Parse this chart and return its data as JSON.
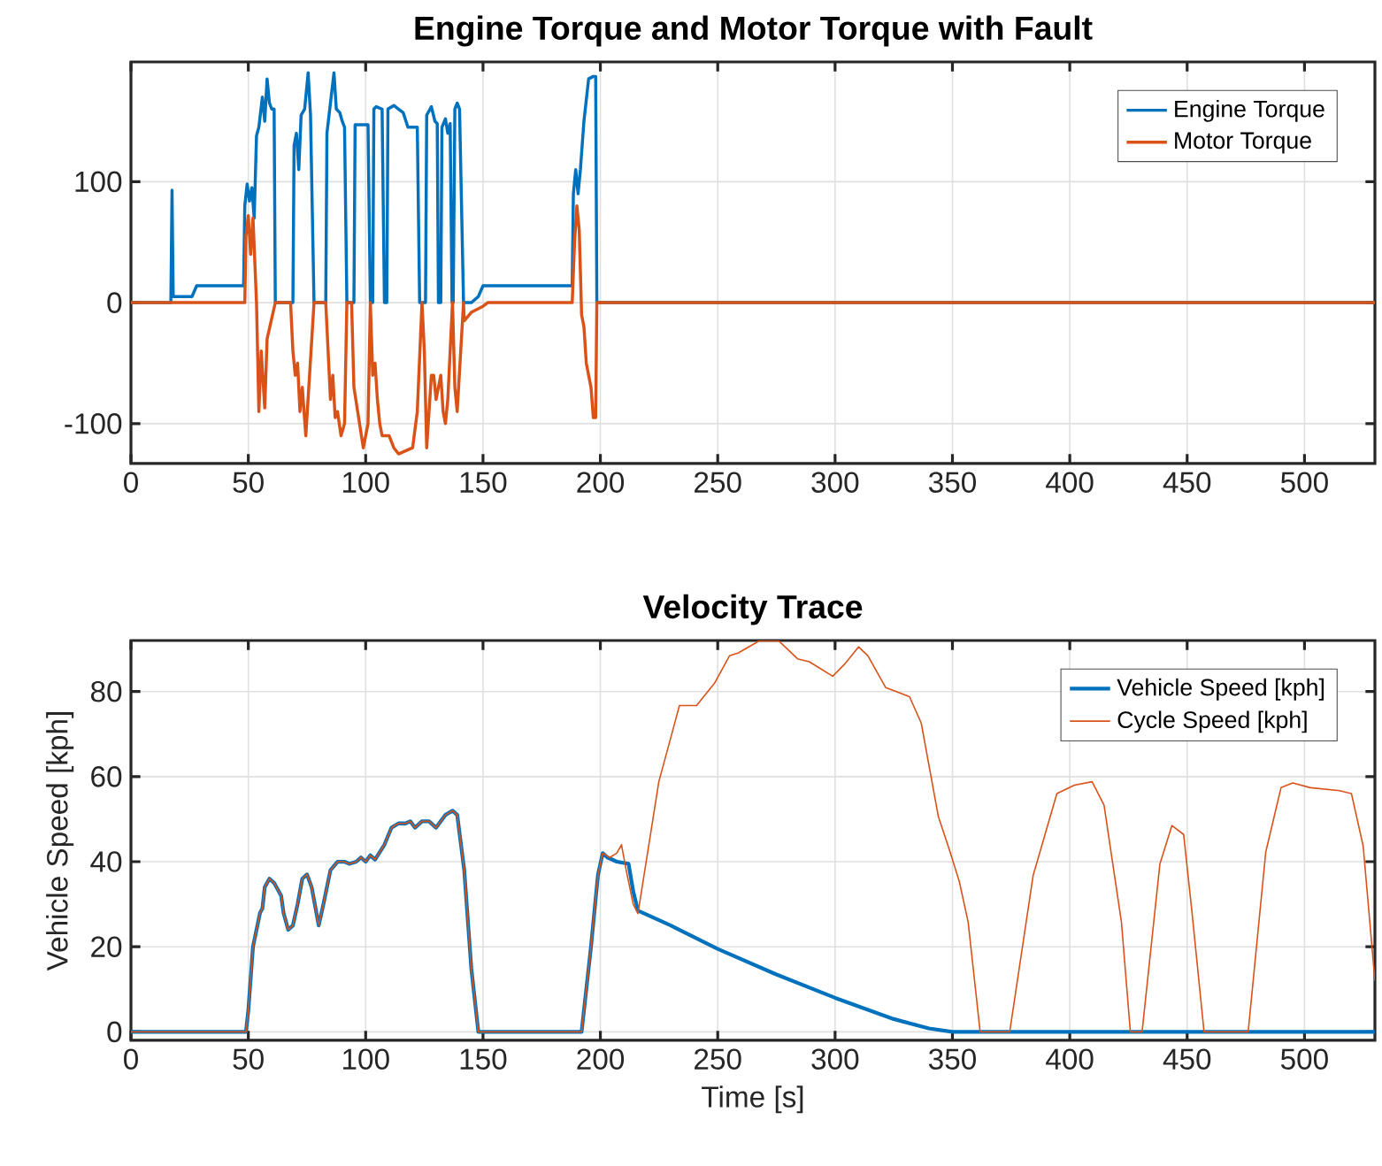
{
  "chart_data": [
    {
      "type": "line",
      "title": "Engine Torque and Motor Torque with Fault",
      "xlim": [
        0,
        530
      ],
      "xticks": [
        0,
        50,
        100,
        150,
        200,
        250,
        300,
        350,
        400,
        450,
        500
      ],
      "ylim": [
        -133,
        199
      ],
      "yticks": [
        -100,
        0,
        100
      ],
      "grid": true,
      "legend": "top right",
      "series": [
        {
          "name": "Engine Torque",
          "color": "#0072bd",
          "x": [
            0,
            17,
            17.5,
            18,
            26,
            28,
            48,
            48.5,
            49.5,
            50.5,
            51.5,
            52.5,
            53.5,
            54.5,
            56,
            57,
            58,
            59,
            60,
            61,
            61.5,
            69,
            69.5,
            70.5,
            71.5,
            72.5,
            74,
            75,
            75.5,
            76.5,
            78,
            83,
            83.5,
            85,
            86.5,
            87.5,
            89,
            90,
            91,
            92,
            95,
            95.5,
            101,
            102,
            103,
            103.5,
            104.5,
            107,
            108,
            109,
            109.5,
            112,
            114,
            116,
            118,
            122,
            123,
            125.5,
            126,
            128,
            129.5,
            130.5,
            131,
            132,
            132.5,
            134,
            135,
            136,
            136.8,
            137.3,
            138,
            139,
            140,
            141.7,
            145,
            148,
            150,
            188,
            188.5,
            189.5,
            190.5,
            191.5,
            193,
            195,
            196,
            197,
            198,
            198.5,
            530
          ],
          "values": [
            0,
            0,
            93,
            5,
            5,
            14,
            14,
            80,
            98,
            84,
            95,
            70,
            138,
            145,
            170,
            150,
            185,
            165,
            160,
            160,
            0,
            0,
            130,
            140,
            110,
            155,
            160,
            180,
            190,
            155,
            0,
            0,
            140,
            165,
            190,
            160,
            157,
            150,
            145,
            0,
            0,
            147,
            147,
            0,
            0,
            160,
            162,
            160,
            0,
            0,
            160,
            163,
            160,
            157,
            145,
            145,
            0,
            0,
            155,
            162,
            150,
            148,
            0,
            0,
            145,
            152,
            140,
            148,
            0,
            0,
            160,
            165,
            160,
            0,
            0,
            5,
            14,
            14,
            90,
            110,
            90,
            110,
            150,
            185,
            null,
            187,
            187,
            0,
            0
          ]
        },
        {
          "name": "Motor Torque",
          "color": "#d95319",
          "x": [
            0,
            48.5,
            49,
            50,
            51,
            52,
            53.5,
            54.5,
            55.5,
            57,
            58,
            59,
            60.5,
            61.5,
            68,
            69,
            70,
            71,
            72,
            73,
            74.5,
            75.5,
            76.5,
            78,
            83,
            84,
            85,
            86,
            87,
            88,
            89.5,
            91,
            92,
            94,
            95,
            96,
            98,
            99,
            100,
            101,
            102,
            103,
            104,
            105,
            106,
            107,
            108,
            109,
            110,
            112,
            114,
            116,
            118,
            120,
            122,
            123,
            124,
            125,
            126,
            127,
            128,
            129,
            130,
            131,
            132,
            133,
            134,
            135,
            136,
            137,
            138,
            139,
            140,
            141,
            141.7,
            142,
            145,
            150,
            152,
            188,
            189,
            190,
            191,
            192,
            193,
            194,
            195,
            196,
            197,
            198,
            198.5,
            530
          ],
          "values": [
            0,
            0,
            55,
            72,
            40,
            70,
            0,
            -90,
            -40,
            -87,
            -30,
            null,
            null,
            0,
            0,
            -40,
            -60,
            -50,
            -90,
            -70,
            -110,
            null,
            null,
            0,
            0,
            -40,
            -80,
            -60,
            -95,
            -90,
            -110,
            -100,
            0,
            0,
            -70,
            null,
            null,
            -120,
            null,
            -100,
            0,
            -60,
            -50,
            -80,
            -100,
            -110,
            null,
            null,
            -110,
            -120,
            -125,
            null,
            null,
            -120,
            -90,
            null,
            0,
            -40,
            -120,
            null,
            -60,
            -60,
            -80,
            -70,
            -60,
            -90,
            -100,
            -80,
            null,
            0,
            -70,
            -90,
            null,
            null,
            0,
            -15,
            -8,
            -3,
            0,
            0,
            50,
            80,
            60,
            -10,
            -20,
            -50,
            -60,
            -70,
            -95,
            -95,
            0,
            0
          ]
        }
      ]
    },
    {
      "type": "line",
      "title": "Velocity Trace",
      "xlabel": "Time [s]",
      "ylabel": "Vehicle Speed [kph]",
      "xlim": [
        0,
        530
      ],
      "xticks": [
        0,
        50,
        100,
        150,
        200,
        250,
        300,
        350,
        400,
        450,
        500
      ],
      "ylim": [
        -2,
        92
      ],
      "yticks": [
        0,
        20,
        40,
        60,
        80
      ],
      "grid": true,
      "legend": "top right",
      "series": [
        {
          "name": "Vehicle Speed [kph]",
          "color": "#0072bd",
          "x": [
            0,
            49,
            50,
            52,
            55,
            56,
            57,
            59,
            61,
            64,
            65,
            67,
            69,
            71,
            73,
            75,
            77,
            79,
            80,
            82,
            85,
            88,
            91,
            93,
            96,
            98,
            100,
            102,
            104,
            108,
            111,
            114,
            117,
            119,
            121,
            124,
            127,
            130,
            134,
            137,
            139,
            142,
            145,
            148,
            192,
            196,
            199,
            201,
            203,
            207,
            212,
            214,
            216,
            220,
            230,
            250,
            275,
            300,
            325,
            340,
            350,
            530
          ],
          "values": [
            0,
            0,
            5,
            20,
            28,
            29,
            34,
            36,
            35,
            32,
            28,
            24,
            25,
            30,
            36,
            37,
            34,
            28,
            25,
            30,
            38,
            40,
            40,
            39.5,
            40,
            41,
            40,
            41.5,
            40.5,
            44,
            48,
            49,
            49,
            49.5,
            48,
            49.5,
            49.5,
            48,
            51,
            52,
            51,
            38,
            15,
            0,
            0,
            20,
            37,
            42,
            41,
            40,
            39.5,
            33,
            28.5,
            27.5,
            25,
            19.5,
            13.5,
            8,
            3,
            0.8,
            0,
            0
          ]
        },
        {
          "name": "Cycle Speed [kph]",
          "color": "#d95319",
          "x": [
            0,
            49,
            50,
            52,
            55,
            56,
            57,
            59,
            61,
            64,
            65,
            67,
            69,
            71,
            73,
            75,
            77,
            79,
            80,
            82,
            85,
            88,
            91,
            93,
            96,
            98,
            100,
            102,
            104,
            108,
            111,
            114,
            117,
            119,
            121,
            124,
            127,
            130,
            134,
            137,
            139,
            142,
            145,
            148,
            192,
            196,
            199,
            201,
            204,
            207,
            209,
            211,
            214,
            216,
            218.6,
            224.9,
            233.7,
            241,
            248.7,
            255,
            258.8,
            267.6,
            276,
            284,
            289,
            299,
            304,
            310,
            314,
            321.6,
            331.7,
            336.7,
            344,
            349,
            352.9,
            356.7,
            361.8,
            374.4,
            384.4,
            394.5,
            402,
            409.5,
            414.6,
            422,
            425.8,
            430.8,
            438.4,
            443.5,
            448.5,
            452,
            457.2,
            476,
            483.5,
            490,
            495,
            502.5,
            515,
            520,
            525,
            530
          ],
          "values": [
            0,
            0,
            5,
            20,
            28,
            29,
            34,
            36,
            35,
            32,
            28,
            24,
            25,
            30,
            36,
            37,
            34,
            28,
            25,
            30,
            38,
            40,
            40,
            39.5,
            40,
            41,
            40,
            41.5,
            40.5,
            44,
            48,
            49,
            49,
            49.5,
            48,
            49.5,
            49.5,
            48,
            51,
            52,
            51,
            38,
            15,
            0,
            0,
            20,
            37,
            42,
            41,
            42,
            44,
            38,
            30,
            27.8,
            36.8,
            58.8,
            76.7,
            76.7,
            82,
            88.4,
            89.1,
            91.9,
            91.9,
            87.7,
            87,
            83.6,
            86.4,
            90.5,
            88.4,
            80.9,
            78.8,
            72.6,
            50.6,
            42.3,
            35.4,
            25.8,
            0,
            0,
            36.8,
            56,
            58,
            58.8,
            53.3,
            25.8,
            0,
            0,
            39.5,
            48.5,
            46.4,
            28.5,
            0,
            0,
            42.3,
            57.4,
            58.5,
            57.4,
            56.7,
            56,
            43.7,
            12
          ]
        }
      ]
    }
  ]
}
